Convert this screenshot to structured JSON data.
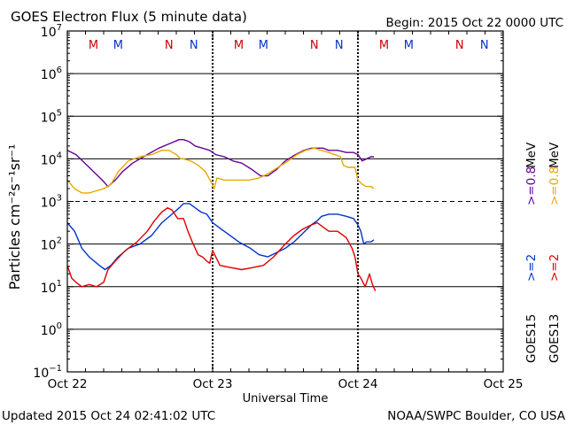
{
  "chart_data": {
    "type": "line",
    "title": "GOES Electron Flux (5 minute data)",
    "begin_label": "Begin: 2015 Oct 22 0000 UTC",
    "xlabel": "Universal Time",
    "ylabel": "Particles cm⁻²s⁻¹sr⁻¹",
    "footer_left": "Updated 2015 Oct 24 02:41:02 UTC",
    "footer_right": "NOAA/SWPC Boulder, CO USA",
    "x_range_days": [
      0,
      3
    ],
    "y_scale": "log",
    "y_range_log10": [
      -1,
      7
    ],
    "x_ticks": [
      {
        "day": 0,
        "label": "Oct 22"
      },
      {
        "day": 1,
        "label": "Oct 23"
      },
      {
        "day": 2,
        "label": "Oct 24"
      },
      {
        "day": 3,
        "label": "Oct 25"
      }
    ],
    "y_ticks": [
      {
        "exp": -1,
        "base": "10",
        "sup": "−1"
      },
      {
        "exp": 0,
        "base": "10",
        "sup": "0"
      },
      {
        "exp": 1,
        "base": "10",
        "sup": "1"
      },
      {
        "exp": 2,
        "base": "10",
        "sup": "2"
      },
      {
        "exp": 3,
        "base": "10",
        "sup": "3"
      },
      {
        "exp": 4,
        "base": "10",
        "sup": "4"
      },
      {
        "exp": 5,
        "base": "10",
        "sup": "5"
      },
      {
        "exp": 6,
        "base": "10",
        "sup": "6"
      },
      {
        "exp": 7,
        "base": "10",
        "sup": "7"
      }
    ],
    "grid_solid_exp": [
      0,
      1,
      2,
      4,
      5,
      6
    ],
    "grid_dashed_exp": [
      3
    ],
    "day_dividers": [
      1,
      2
    ],
    "mn_markers": [
      {
        "day": 0.18,
        "text": "M",
        "color": "#cc0000"
      },
      {
        "day": 0.35,
        "text": "M",
        "color": "#0033cc"
      },
      {
        "day": 0.7,
        "text": "N",
        "color": "#cc0000"
      },
      {
        "day": 0.87,
        "text": "N",
        "color": "#0033cc"
      },
      {
        "day": 1.18,
        "text": "M",
        "color": "#cc0000"
      },
      {
        "day": 1.35,
        "text": "M",
        "color": "#0033cc"
      },
      {
        "day": 1.7,
        "text": "N",
        "color": "#cc0000"
      },
      {
        "day": 1.87,
        "text": "N",
        "color": "#0033cc"
      },
      {
        "day": 2.18,
        "text": "M",
        "color": "#cc0000"
      },
      {
        "day": 2.35,
        "text": "M",
        "color": "#0033cc"
      },
      {
        "day": 2.7,
        "text": "N",
        "color": "#cc0000"
      },
      {
        "day": 2.87,
        "text": "N",
        "color": "#0033cc"
      }
    ],
    "legend": [
      {
        "sat": "GOES15",
        "threshold": ">=0.8 MeV",
        "color": "#660099"
      },
      {
        "sat": "GOES13",
        "threshold": ">=0.8 MeV",
        "color": "#e6a800"
      },
      {
        "sat": "GOES15",
        "threshold": ">=2 MeV",
        "color": "#0033cc"
      },
      {
        "sat": "GOES13",
        "threshold": ">=2 MeV",
        "color": "#dd0000"
      }
    ],
    "legend_sat_labels": [
      "GOES15",
      "GOES13"
    ],
    "legend_label_a": ">=2",
    "legend_label_b": ">=0.8",
    "legend_unit": "MeV",
    "series": [
      {
        "name": "GOES15 >=0.8 MeV",
        "color": "#660099",
        "x": [
          0.0,
          0.06,
          0.12,
          0.18,
          0.24,
          0.28,
          0.33,
          0.38,
          0.45,
          0.55,
          0.63,
          0.7,
          0.77,
          0.8,
          0.84,
          0.88,
          0.93,
          0.98,
          1.02,
          1.08,
          1.14,
          1.2,
          1.27,
          1.33,
          1.38,
          1.44,
          1.5,
          1.57,
          1.63,
          1.68,
          1.72,
          1.76,
          1.8,
          1.86,
          1.92,
          1.97,
          2.0,
          2.03,
          2.06,
          2.09,
          2.11
        ],
        "log10": [
          4.2,
          4.1,
          3.9,
          3.7,
          3.5,
          3.35,
          3.5,
          3.7,
          3.9,
          4.1,
          4.25,
          4.35,
          4.45,
          4.45,
          4.4,
          4.3,
          4.25,
          4.2,
          4.1,
          4.05,
          3.95,
          3.9,
          3.75,
          3.6,
          3.6,
          3.75,
          3.95,
          4.1,
          4.2,
          4.25,
          4.25,
          4.25,
          4.2,
          4.2,
          4.15,
          4.15,
          4.1,
          3.95,
          4.0,
          4.05,
          4.05
        ]
      },
      {
        "name": "GOES13 >=0.8 MeV",
        "color": "#e6a800",
        "x": [
          0.0,
          0.05,
          0.1,
          0.15,
          0.2,
          0.25,
          0.3,
          0.35,
          0.42,
          0.5,
          0.58,
          0.65,
          0.7,
          0.75,
          0.78,
          0.8,
          0.85,
          0.9,
          0.95,
          0.99,
          1.01,
          1.03,
          1.08,
          1.15,
          1.25,
          1.32,
          1.38,
          1.45,
          1.52,
          1.58,
          1.64,
          1.7,
          1.75,
          1.8,
          1.88,
          1.9,
          1.93,
          1.98,
          2.0,
          2.03,
          2.06,
          2.09,
          2.11
        ],
        "log10": [
          3.5,
          3.3,
          3.2,
          3.2,
          3.25,
          3.3,
          3.4,
          3.7,
          3.95,
          4.05,
          4.1,
          4.2,
          4.2,
          4.1,
          4.0,
          4.0,
          3.95,
          3.85,
          3.7,
          3.45,
          3.3,
          3.55,
          3.5,
          3.5,
          3.5,
          3.55,
          3.65,
          3.8,
          3.95,
          4.1,
          4.2,
          4.25,
          4.2,
          4.15,
          4.05,
          3.85,
          3.8,
          3.8,
          3.5,
          3.4,
          3.35,
          3.35,
          3.3
        ]
      },
      {
        "name": "GOES15 >=2 MeV",
        "color": "#0033cc",
        "x": [
          0.0,
          0.05,
          0.1,
          0.15,
          0.22,
          0.26,
          0.3,
          0.35,
          0.42,
          0.5,
          0.58,
          0.65,
          0.72,
          0.77,
          0.8,
          0.84,
          0.88,
          0.92,
          0.96,
          1.0,
          1.04,
          1.1,
          1.18,
          1.26,
          1.32,
          1.38,
          1.44,
          1.5,
          1.56,
          1.62,
          1.68,
          1.72,
          1.75,
          1.8,
          1.86,
          1.92,
          1.97,
          2.0,
          2.02,
          2.04,
          2.06,
          2.09,
          2.11
        ],
        "log10": [
          2.5,
          2.3,
          1.9,
          1.7,
          1.5,
          1.4,
          1.5,
          1.7,
          1.9,
          2.0,
          2.2,
          2.5,
          2.7,
          2.85,
          2.95,
          2.95,
          2.85,
          2.75,
          2.7,
          2.5,
          2.4,
          2.25,
          2.05,
          1.9,
          1.75,
          1.7,
          1.8,
          1.9,
          2.05,
          2.25,
          2.45,
          2.55,
          2.65,
          2.7,
          2.7,
          2.65,
          2.6,
          2.45,
          2.3,
          2.0,
          2.05,
          2.05,
          2.1
        ]
      },
      {
        "name": "GOES13 >=2 MeV",
        "color": "#dd0000",
        "x": [
          0.0,
          0.03,
          0.06,
          0.1,
          0.15,
          0.2,
          0.25,
          0.28,
          0.33,
          0.4,
          0.48,
          0.55,
          0.6,
          0.65,
          0.69,
          0.72,
          0.76,
          0.8,
          0.83,
          0.86,
          0.88,
          0.9,
          0.93,
          0.96,
          0.98,
          1.0,
          1.05,
          1.12,
          1.2,
          1.28,
          1.35,
          1.42,
          1.5,
          1.56,
          1.62,
          1.68,
          1.72,
          1.76,
          1.8,
          1.86,
          1.92,
          1.96,
          1.98,
          2.0,
          2.02,
          2.05,
          2.08,
          2.1,
          2.12
        ],
        "log10": [
          1.5,
          1.2,
          1.1,
          1.0,
          1.05,
          1.0,
          1.1,
          1.4,
          1.6,
          1.85,
          2.05,
          2.3,
          2.55,
          2.75,
          2.85,
          2.8,
          2.6,
          2.6,
          2.3,
          2.05,
          1.9,
          1.75,
          1.7,
          1.6,
          1.55,
          1.85,
          1.5,
          1.45,
          1.4,
          1.45,
          1.5,
          1.7,
          2.0,
          2.2,
          2.35,
          2.45,
          2.5,
          2.4,
          2.3,
          2.3,
          2.15,
          1.9,
          1.7,
          1.3,
          1.2,
          1.0,
          1.3,
          1.05,
          0.9
        ]
      }
    ]
  }
}
